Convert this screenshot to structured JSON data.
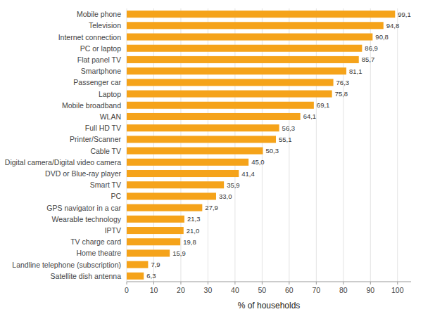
{
  "chart_data": {
    "type": "bar",
    "orientation": "horizontal",
    "categories": [
      "Satellite dish antenna",
      "Landline telephone (subscription)",
      "Home theatre",
      "TV charge card",
      "IPTV",
      "Wearable technology",
      "GPS navigator in a car",
      "PC",
      "Smart TV",
      "DVD or Blue-ray player",
      "Digital camera/Digital video camera",
      "Cable TV",
      "Printer/Scanner",
      "Full HD TV",
      "WLAN",
      "Mobile broadband",
      "Laptop",
      "Passenger car",
      "Smartphone",
      "Flat panel TV",
      "PC or laptop",
      "Internet connection",
      "Television",
      "Mobile phone"
    ],
    "values": [
      6.3,
      7.9,
      15.9,
      19.8,
      21.0,
      21.3,
      27.9,
      33.0,
      35.9,
      41.4,
      45.0,
      50.3,
      55.1,
      56.3,
      64.1,
      69.1,
      75.8,
      76.3,
      81.1,
      85.7,
      86.9,
      90.8,
      94.8,
      99.1
    ],
    "value_labels": [
      "6,3",
      "7,9",
      "15,9",
      "19,8",
      "21,0",
      "21,3",
      "27,9",
      "33,0",
      "35,9",
      "41,4",
      "45,0",
      "50,3",
      "55,1",
      "56,3",
      "64,1",
      "69,1",
      "75,8",
      "76,3",
      "81,1",
      "85,7",
      "86,9",
      "90,8",
      "94,8",
      "99,1"
    ],
    "data_labels": true,
    "color": "#F5A31A",
    "xlabel": "% of households",
    "xlim": [
      0,
      105
    ],
    "xticks": [
      0,
      10,
      20,
      30,
      40,
      50,
      60,
      70,
      80,
      90,
      100
    ],
    "grid": true
  }
}
